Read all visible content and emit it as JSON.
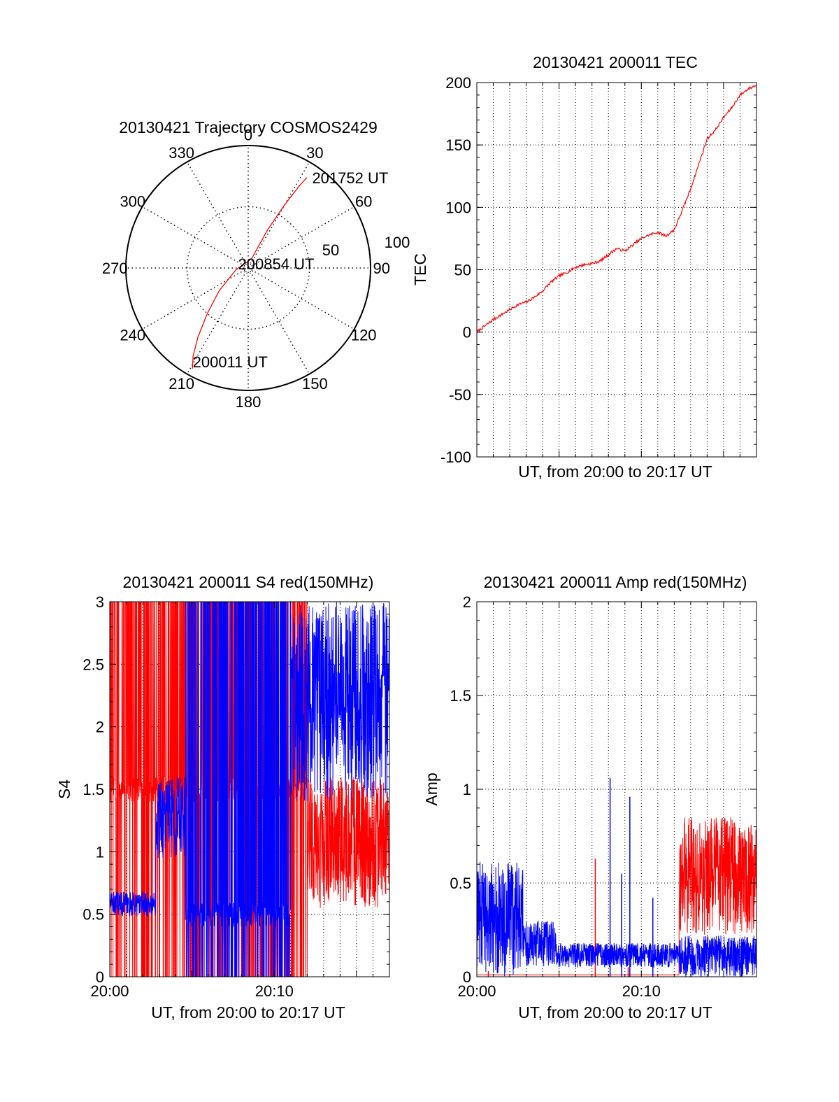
{
  "chart_data": [
    {
      "id": "trajectory",
      "type": "polar",
      "title": "20130421 Trajectory COSMOS2429",
      "azimuth_labels": [
        "0",
        "30",
        "60",
        "90",
        "120",
        "150",
        "180",
        "210",
        "240",
        "270",
        "300",
        "330"
      ],
      "radial_labels": [
        "50",
        "100"
      ],
      "rlim": [
        0,
        100
      ],
      "grid": true,
      "series": [
        {
          "color": "#ff0000",
          "points": [
            [
              209,
              94
            ],
            [
              212,
              85
            ],
            [
              216,
              70
            ],
            [
              222,
              50
            ],
            [
              232,
              30
            ],
            [
              262,
              10
            ],
            [
              20,
              8
            ],
            [
              27,
              35
            ],
            [
              30,
              60
            ],
            [
              32,
              80
            ],
            [
              33,
              88
            ]
          ]
        }
      ],
      "annotations": [
        {
          "text": "201752 UT",
          "az": 33,
          "r": 88
        },
        {
          "text": "200854 UT",
          "az": 0,
          "r": 0
        },
        {
          "text": "200011 UT",
          "az": 209,
          "r": 94
        }
      ]
    },
    {
      "id": "tec",
      "type": "line",
      "title": "20130421 200011 TEC",
      "xlabel": "UT, from 20:00 to 20:17 UT",
      "ylabel": "TEC",
      "xlim": [
        0,
        17
      ],
      "ylim": [
        -100,
        200
      ],
      "yticks": [
        "-100",
        "-50",
        "0",
        "50",
        "100",
        "150",
        "200"
      ],
      "grid": true,
      "series": [
        {
          "color": "#ff0000",
          "x": [
            0,
            0.5,
            1,
            1.5,
            2,
            2.5,
            3,
            3.5,
            4,
            4.5,
            5,
            5.5,
            6,
            6.5,
            7,
            7.5,
            8,
            8.5,
            9,
            9.5,
            10,
            10.5,
            11,
            11.5,
            12,
            12.5,
            13,
            13.5,
            14,
            14.5,
            15,
            15.5,
            16,
            16.5,
            17
          ],
          "y": [
            0,
            5,
            10,
            14,
            18,
            22,
            24,
            28,
            33,
            40,
            45,
            48,
            52,
            54,
            55,
            57,
            62,
            67,
            65,
            70,
            75,
            78,
            80,
            77,
            82,
            98,
            115,
            135,
            155,
            162,
            172,
            180,
            190,
            195,
            198
          ]
        }
      ]
    },
    {
      "id": "s4",
      "type": "line",
      "title": "20130421 200011 S4 red(150MHz)",
      "xlabel": "UT, from 20:00 to 20:17 UT",
      "ylabel": "S4",
      "xlim": [
        0,
        17
      ],
      "ylim": [
        0,
        3
      ],
      "yticks": [
        "0",
        "0.5",
        "1",
        "1.5",
        "2",
        "2.5",
        "3"
      ],
      "xticks": [
        {
          "value": 0,
          "label": "20:00"
        },
        {
          "value": 10,
          "label": "20:10"
        }
      ],
      "grid": true,
      "series": [
        {
          "color": "#ff0000",
          "regimes": [
            {
              "from": 0,
              "to": 12,
              "style": "spiky",
              "base": 1.5,
              "max": 3
            },
            {
              "from": 12,
              "to": 17,
              "style": "noise",
              "low": 0.55,
              "high": 1.6
            }
          ]
        },
        {
          "color": "#0000ff",
          "regimes": [
            {
              "from": 0,
              "to": 2.8,
              "style": "noise",
              "low": 0.48,
              "high": 0.68
            },
            {
              "from": 2.8,
              "to": 4.6,
              "style": "noise",
              "low": 0.95,
              "high": 1.6
            },
            {
              "from": 4.6,
              "to": 11,
              "style": "spiky",
              "base": 0.5,
              "max": 3
            },
            {
              "from": 11,
              "to": 17,
              "style": "noise",
              "low": 1.4,
              "high": 3
            }
          ]
        }
      ]
    },
    {
      "id": "amp",
      "type": "line",
      "title": "20130421 200011 Amp red(150MHz)",
      "xlabel": "UT, from 20:00 to 20:17 UT",
      "ylabel": "Amp",
      "xlim": [
        0,
        17
      ],
      "ylim": [
        0,
        2
      ],
      "yticks": [
        "0",
        "0.5",
        "1",
        "1.5",
        "2"
      ],
      "xticks": [
        {
          "value": 0,
          "label": "20:00"
        },
        {
          "value": 10,
          "label": "20:10"
        }
      ],
      "grid": true,
      "series": [
        {
          "color": "#ff0000",
          "regimes": [
            {
              "from": 0,
              "to": 12.3,
              "style": "flat",
              "level": 0.01
            },
            {
              "from": 12.3,
              "to": 17,
              "style": "noise",
              "low": 0.22,
              "high": 0.85
            }
          ],
          "spikes": [
            {
              "x": 7.2,
              "y": 0.63
            },
            {
              "x": 0.7,
              "y": 0.03
            },
            {
              "x": 9.2,
              "y": 0.05
            }
          ]
        },
        {
          "color": "#0000ff",
          "regimes": [
            {
              "from": 0,
              "to": 2.8,
              "style": "noise",
              "low": 0.0,
              "high": 0.62
            },
            {
              "from": 2.8,
              "to": 4.8,
              "style": "noise",
              "low": 0.05,
              "high": 0.3
            },
            {
              "from": 4.8,
              "to": 12.3,
              "style": "noise",
              "low": 0.05,
              "high": 0.18
            },
            {
              "from": 12.3,
              "to": 17,
              "style": "noise",
              "low": 0.0,
              "high": 0.22
            }
          ],
          "spikes": [
            {
              "x": 8.1,
              "y": 1.06
            },
            {
              "x": 9.3,
              "y": 0.96
            },
            {
              "x": 8.8,
              "y": 0.55
            },
            {
              "x": 10.7,
              "y": 0.42
            }
          ]
        }
      ]
    }
  ]
}
